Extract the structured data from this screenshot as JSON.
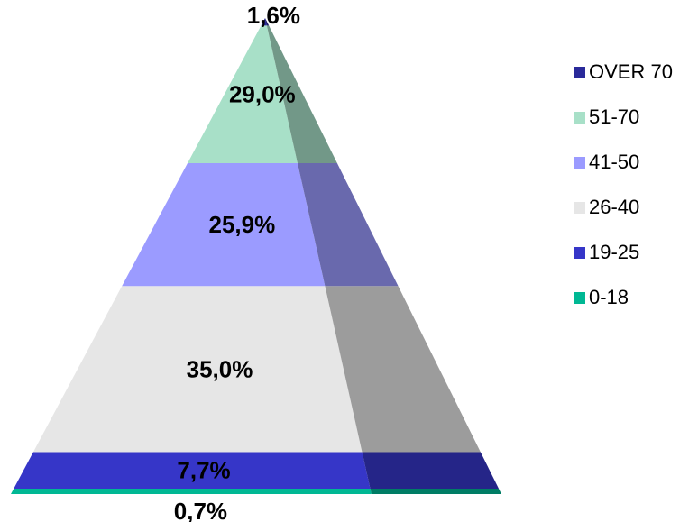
{
  "chart_data": {
    "type": "pyramid",
    "title": "",
    "series": [
      {
        "name": "0-18",
        "value": 0.7,
        "label": "0,7%",
        "color": "#00b894"
      },
      {
        "name": "19-25",
        "value": 7.7,
        "label": "7,7%",
        "color": "#3636c8"
      },
      {
        "name": "26-40",
        "value": 35.0,
        "label": "35,0%",
        "color": "#e6e6e6"
      },
      {
        "name": "41-50",
        "value": 25.9,
        "label": "25,9%",
        "color": "#9b9bff"
      },
      {
        "name": "51-70",
        "value": 29.0,
        "label": "29,0%",
        "color": "#a8e0c8"
      },
      {
        "name": "OVER 70",
        "value": 1.6,
        "label": "1,6%",
        "color": "#2a2a9a"
      }
    ],
    "legend": {
      "placement": "right",
      "order": [
        "OVER 70",
        "51-70",
        "41-50",
        "26-40",
        "19-25",
        "0-18"
      ]
    }
  }
}
